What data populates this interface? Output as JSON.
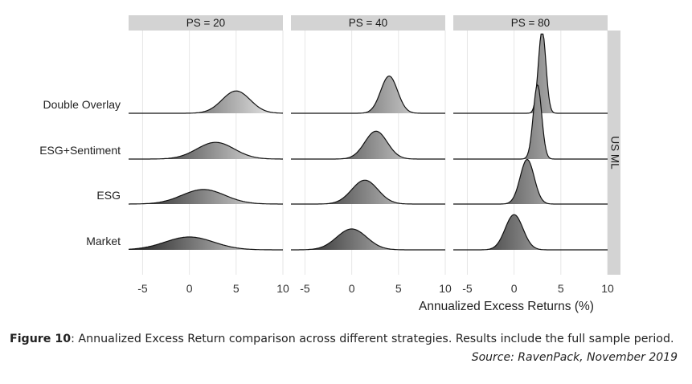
{
  "chart_data": {
    "type": "ridgeline density",
    "panels": [
      "PS = 20",
      "PS = 40",
      "PS = 80"
    ],
    "facet_row_label": "US ML",
    "strategies": [
      "Double Overlay",
      "ESG+Sentiment",
      "ESG",
      "Market"
    ],
    "x_ticks": [
      -5,
      0,
      5,
      10
    ],
    "xlim": [
      -6.5,
      10
    ],
    "xlabel": "Annualized Excess Returns (%)",
    "series": [
      {
        "panel": "PS = 20",
        "strategy": "Double Overlay",
        "mean": 5.0,
        "sd": 1.5
      },
      {
        "panel": "PS = 20",
        "strategy": "ESG+Sentiment",
        "mean": 2.8,
        "sd": 2.0
      },
      {
        "panel": "PS = 20",
        "strategy": "ESG",
        "mean": 1.5,
        "sd": 2.3
      },
      {
        "panel": "PS = 20",
        "strategy": "Market",
        "mean": 0.0,
        "sd": 2.6
      },
      {
        "panel": "PS = 40",
        "strategy": "Double Overlay",
        "mean": 4.0,
        "sd": 0.9
      },
      {
        "panel": "PS = 40",
        "strategy": "ESG+Sentiment",
        "mean": 2.6,
        "sd": 1.2
      },
      {
        "panel": "PS = 40",
        "strategy": "ESG",
        "mean": 1.4,
        "sd": 1.4
      },
      {
        "panel": "PS = 40",
        "strategy": "Market",
        "mean": 0.0,
        "sd": 1.6
      },
      {
        "panel": "PS = 80",
        "strategy": "Double Overlay",
        "mean": 3.0,
        "sd": 0.4
      },
      {
        "panel": "PS = 80",
        "strategy": "ESG+Sentiment",
        "mean": 2.5,
        "sd": 0.45
      },
      {
        "panel": "PS = 80",
        "strategy": "ESG",
        "mean": 1.4,
        "sd": 0.75
      },
      {
        "panel": "PS = 80",
        "strategy": "Market",
        "mean": 0.0,
        "sd": 0.95
      }
    ],
    "ridge_height": 1.8
  },
  "caption": {
    "label": "Figure 10",
    "text": ": Annualized Excess Return comparison across different strategies. Results include the full sample period.",
    "source": "Source: RavenPack, November 2019"
  },
  "colors": {
    "strip": "#d3d3d3",
    "grid": "#e6e6e6",
    "fill_dark": "#1e1e1e",
    "fill_light": "#f2f2f2",
    "text": "#222222",
    "axis_text": "#333333"
  }
}
